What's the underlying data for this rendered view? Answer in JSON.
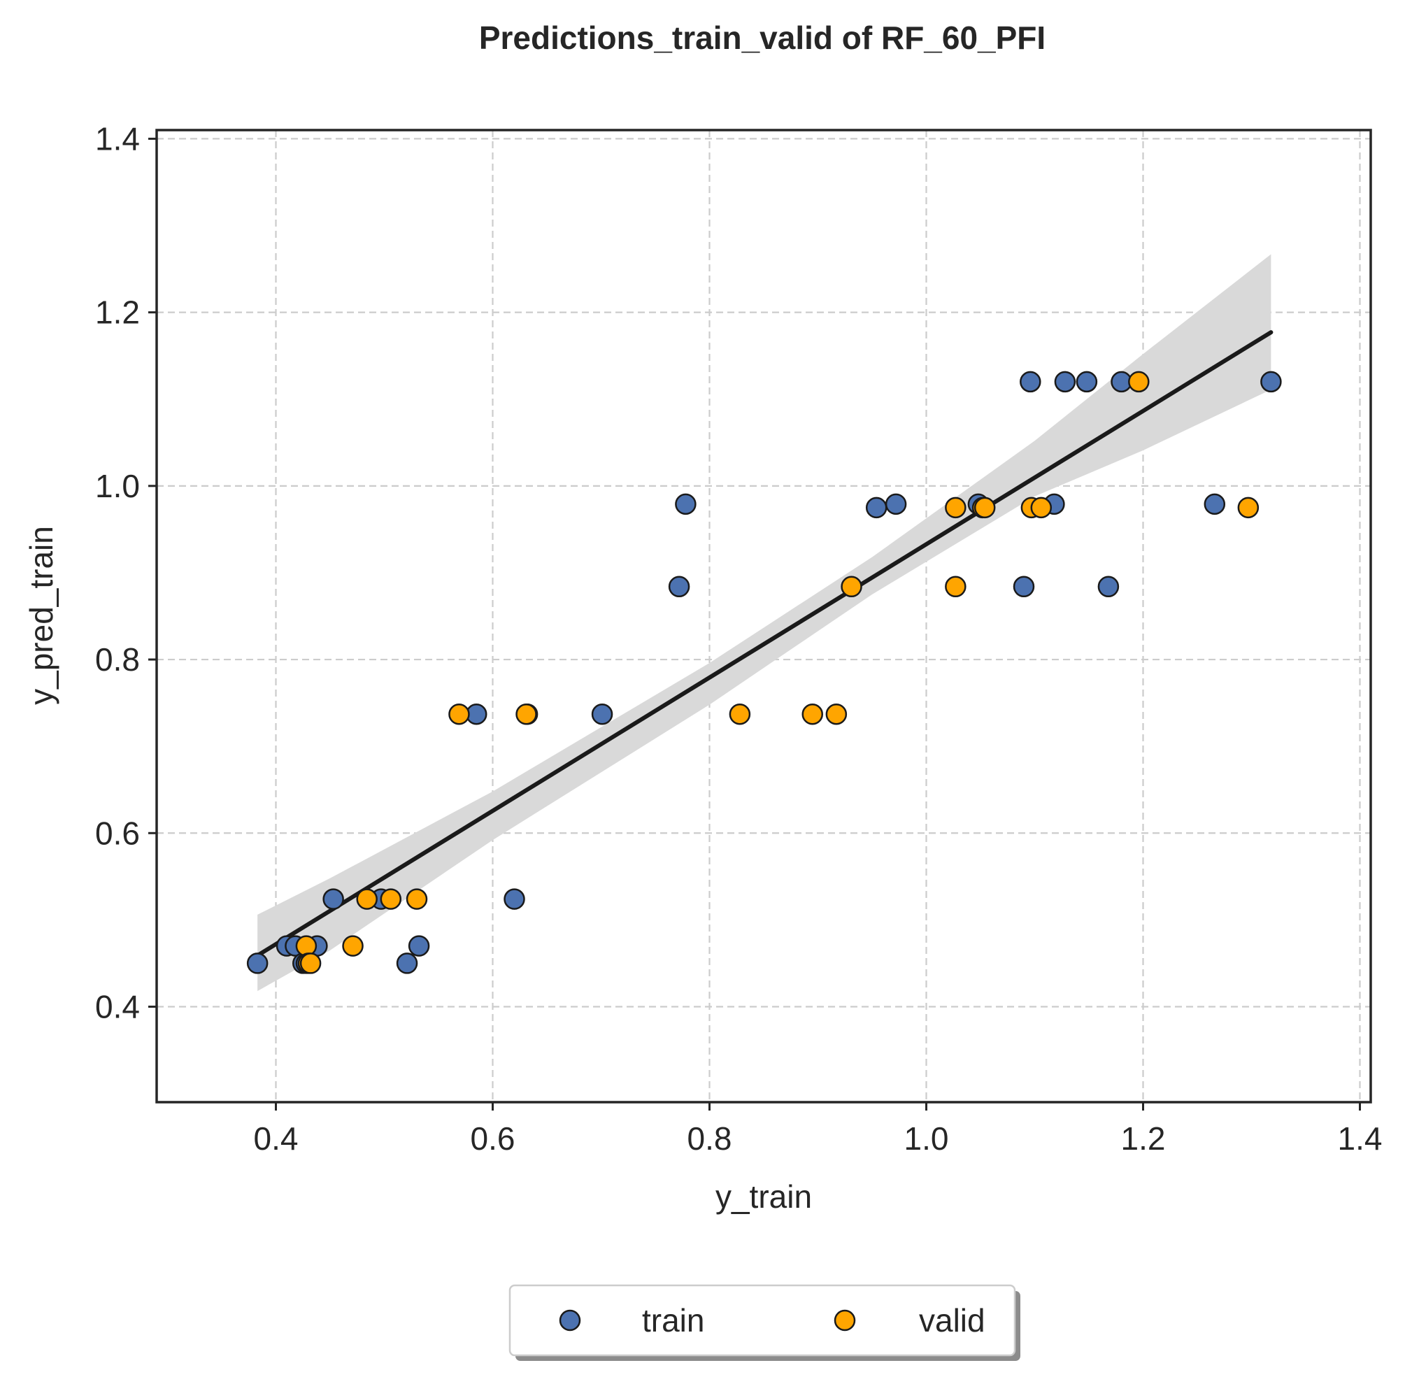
{
  "chart_data": {
    "type": "scatter",
    "title": "Predictions_train_valid of RF_60_PFI",
    "xlabel": "y_train",
    "ylabel": "y_pred_train",
    "xlim": [
      0.29,
      1.41
    ],
    "ylim": [
      0.29,
      1.41
    ],
    "x_ticks": [
      "0.4",
      "0.6",
      "0.8",
      "1.0",
      "1.2",
      "1.4"
    ],
    "y_ticks": [
      "0.4",
      "0.6",
      "0.8",
      "1.0",
      "1.2",
      "1.4"
    ],
    "grid": true,
    "legend_position": "bottom-center",
    "series": [
      {
        "name": "train",
        "color": "#4c72b0",
        "points": [
          [
            0.383,
            0.45
          ],
          [
            0.41,
            0.47
          ],
          [
            0.418,
            0.47
          ],
          [
            0.425,
            0.45
          ],
          [
            0.428,
            0.45
          ],
          [
            0.438,
            0.47
          ],
          [
            0.453,
            0.524
          ],
          [
            0.497,
            0.524
          ],
          [
            0.521,
            0.45
          ],
          [
            0.532,
            0.47
          ],
          [
            0.585,
            0.737
          ],
          [
            0.62,
            0.524
          ],
          [
            0.632,
            0.737
          ],
          [
            0.701,
            0.737
          ],
          [
            0.772,
            0.884
          ],
          [
            0.778,
            0.979
          ],
          [
            0.954,
            0.975
          ],
          [
            0.972,
            0.979
          ],
          [
            1.048,
            0.979
          ],
          [
            1.09,
            0.884
          ],
          [
            1.096,
            1.12
          ],
          [
            1.118,
            0.979
          ],
          [
            1.128,
            1.12
          ],
          [
            1.148,
            1.12
          ],
          [
            1.168,
            0.884
          ],
          [
            1.18,
            1.12
          ],
          [
            1.266,
            0.979
          ],
          [
            1.318,
            1.12
          ]
        ]
      },
      {
        "name": "valid",
        "color": "#ffa500",
        "points": [
          [
            0.428,
            0.47
          ],
          [
            0.43,
            0.45
          ],
          [
            0.432,
            0.45
          ],
          [
            0.471,
            0.47
          ],
          [
            0.484,
            0.524
          ],
          [
            0.506,
            0.524
          ],
          [
            0.53,
            0.524
          ],
          [
            0.569,
            0.737
          ],
          [
            0.631,
            0.737
          ],
          [
            0.828,
            0.737
          ],
          [
            0.895,
            0.737
          ],
          [
            0.917,
            0.737
          ],
          [
            0.931,
            0.884
          ],
          [
            1.027,
            0.975
          ],
          [
            1.027,
            0.884
          ],
          [
            1.052,
            0.975
          ],
          [
            1.054,
            0.975
          ],
          [
            1.097,
            0.975
          ],
          [
            1.106,
            0.975
          ],
          [
            1.196,
            1.12
          ],
          [
            1.297,
            0.975
          ]
        ]
      }
    ],
    "regression": {
      "color": "#1a1a1a",
      "line": [
        [
          0.383,
          0.459
        ],
        [
          1.318,
          1.177
        ]
      ],
      "ci_upper": [
        [
          0.383,
          0.506
        ],
        [
          0.45,
          0.548
        ],
        [
          0.6,
          0.648
        ],
        [
          0.8,
          0.796
        ],
        [
          0.95,
          0.918
        ],
        [
          1.1,
          1.052
        ],
        [
          1.2,
          1.152
        ],
        [
          1.318,
          1.267
        ]
      ],
      "ci_lower": [
        [
          0.383,
          0.418
        ],
        [
          0.45,
          0.465
        ],
        [
          0.6,
          0.592
        ],
        [
          0.8,
          0.748
        ],
        [
          0.95,
          0.875
        ],
        [
          1.1,
          0.988
        ],
        [
          1.2,
          1.041
        ],
        [
          1.318,
          1.111
        ]
      ]
    }
  }
}
